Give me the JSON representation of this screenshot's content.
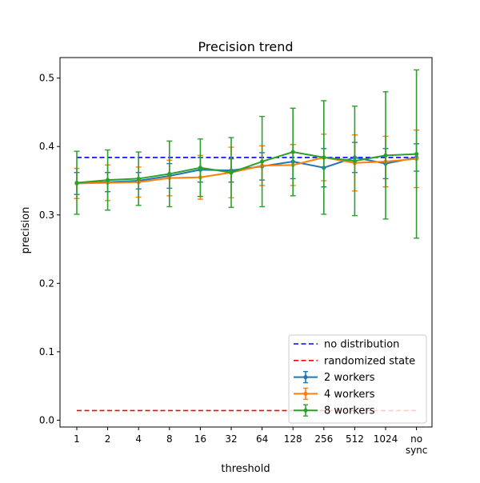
{
  "chart_data": {
    "type": "line",
    "title": "Precision trend",
    "xlabel": "threshold",
    "ylabel": "precision",
    "categories": [
      "1",
      "2",
      "4",
      "8",
      "16",
      "32",
      "64",
      "128",
      "256",
      "512",
      "1024",
      "no\nsync"
    ],
    "ylim": [
      -0.01,
      0.53
    ],
    "yticks": [
      0.0,
      0.1,
      0.2,
      0.3,
      0.4,
      0.5
    ],
    "ytick_labels": [
      "0.0",
      "0.1",
      "0.2",
      "0.3",
      "0.4",
      "0.5"
    ],
    "grid": false,
    "legend_position": "lower-right",
    "hlines": [
      {
        "name": "no distribution",
        "value": 0.384,
        "color": "#0000ff",
        "style": "dashed"
      },
      {
        "name": "randomized state",
        "value": 0.014,
        "color": "#ff0000",
        "style": "dashed"
      }
    ],
    "series": [
      {
        "name": "2 workers",
        "color": "#1f77b4",
        "values": [
          0.346,
          0.348,
          0.35,
          0.357,
          0.366,
          0.365,
          0.371,
          0.378,
          0.369,
          0.384,
          0.375,
          0.384
        ],
        "errors": [
          0.016,
          0.014,
          0.012,
          0.018,
          0.018,
          0.017,
          0.02,
          0.025,
          0.028,
          0.022,
          0.022,
          0.02
        ]
      },
      {
        "name": "4 workers",
        "color": "#ff7f0e",
        "values": [
          0.346,
          0.347,
          0.348,
          0.354,
          0.355,
          0.362,
          0.372,
          0.373,
          0.384,
          0.376,
          0.378,
          0.382
        ],
        "errors": [
          0.022,
          0.026,
          0.022,
          0.026,
          0.032,
          0.037,
          0.029,
          0.03,
          0.034,
          0.041,
          0.037,
          0.042
        ]
      },
      {
        "name": "8 workers",
        "color": "#2ca02c",
        "values": [
          0.347,
          0.351,
          0.353,
          0.36,
          0.369,
          0.362,
          0.378,
          0.392,
          0.384,
          0.379,
          0.387,
          0.389
        ],
        "errors": [
          0.046,
          0.044,
          0.039,
          0.048,
          0.042,
          0.051,
          0.066,
          0.064,
          0.083,
          0.08,
          0.093,
          0.123
        ]
      }
    ]
  }
}
